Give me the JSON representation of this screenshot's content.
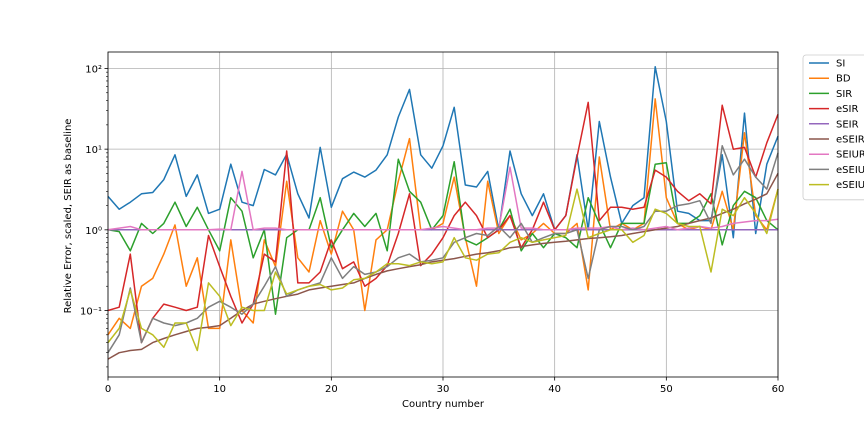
{
  "chart_data": {
    "type": "line",
    "title": "",
    "xlabel": "Country number",
    "ylabel": "Relative Error, scaled, SEIR as baseline",
    "xlim": [
      0,
      60
    ],
    "ylim": [
      0.015,
      160
    ],
    "yscale": "log",
    "grid": true,
    "legend_position": "outside-top-right",
    "x_ticks": [
      "0",
      "10",
      "20",
      "30",
      "40",
      "50",
      "60"
    ],
    "y_ticks": [
      "10⁻¹",
      "10⁰",
      "10¹",
      "10²"
    ],
    "series": [
      {
        "name": "SI",
        "color": "#1f77b4",
        "values": [
          2.6,
          1.8,
          2.2,
          2.8,
          2.9,
          4.2,
          8.5,
          2.6,
          4.8,
          1.6,
          1.8,
          6.5,
          2.2,
          2.0,
          5.6,
          4.8,
          8.6,
          2.8,
          1.4,
          10.5,
          1.9,
          4.3,
          5.2,
          4.5,
          5.5,
          8.5,
          25,
          55,
          8.5,
          5.8,
          11,
          33,
          3.6,
          3.4,
          5.3,
          1.0,
          9.5,
          2.8,
          1.5,
          2.8,
          1.0,
          1.5,
          8.5,
          1.0,
          22,
          4.5,
          1.2,
          2.0,
          2.5,
          105,
          22,
          1.7,
          1.6,
          1.3,
          1.3,
          8.5,
          0.8,
          28,
          0.9,
          6.5,
          14.5
        ]
      },
      {
        "name": "BD",
        "color": "#ff7f0e",
        "values": [
          0.05,
          0.08,
          0.06,
          0.2,
          0.25,
          0.5,
          1.15,
          0.2,
          0.45,
          0.06,
          0.06,
          0.75,
          0.1,
          0.07,
          0.75,
          0.35,
          4.0,
          0.45,
          0.3,
          1.3,
          0.5,
          1.7,
          1.0,
          0.1,
          0.75,
          1.0,
          4.0,
          13.5,
          1.0,
          1.0,
          1.2,
          4.5,
          0.8,
          0.2,
          4.0,
          0.9,
          1.5,
          0.75,
          0.9,
          1.2,
          0.9,
          0.9,
          1.2,
          0.18,
          8.0,
          1.0,
          1.2,
          1.0,
          1.2,
          42,
          2.5,
          1.2,
          1.0,
          1.1,
          1.0,
          3.0,
          1.0,
          16,
          1.5,
          1.0,
          3.2
        ]
      },
      {
        "name": "SIR",
        "color": "#2ca02c",
        "values": [
          1.0,
          0.95,
          0.55,
          1.2,
          0.9,
          1.2,
          2.2,
          1.1,
          1.9,
          1.0,
          0.55,
          2.5,
          1.7,
          0.45,
          1.0,
          0.09,
          0.8,
          1.0,
          1.0,
          2.5,
          0.6,
          1.0,
          1.6,
          1.1,
          1.6,
          0.55,
          7.5,
          3.0,
          2.2,
          1.0,
          1.5,
          7.0,
          0.75,
          0.65,
          0.8,
          1.0,
          1.8,
          0.55,
          0.9,
          0.6,
          0.9,
          0.8,
          0.6,
          2.5,
          1.2,
          0.6,
          1.2,
          1.2,
          1.2,
          6.5,
          6.8,
          1.2,
          1.2,
          1.5,
          2.8,
          0.65,
          2.0,
          3.0,
          2.5,
          1.3,
          1.0
        ]
      },
      {
        "name": "eSIR",
        "color": "#d62728",
        "values": [
          0.1,
          0.11,
          0.5,
          0.04,
          0.08,
          0.12,
          0.11,
          0.1,
          0.11,
          0.85,
          0.35,
          0.15,
          0.07,
          0.12,
          0.5,
          0.4,
          9.5,
          0.22,
          0.22,
          0.3,
          0.75,
          0.33,
          0.4,
          0.2,
          0.25,
          0.36,
          0.9,
          2.8,
          0.36,
          0.5,
          0.8,
          1.5,
          2.2,
          1.5,
          0.8,
          1.0,
          1.5,
          0.6,
          1.0,
          2.2,
          1.0,
          1.5,
          8.0,
          38,
          1.3,
          1.9,
          1.9,
          1.8,
          1.9,
          5.5,
          4.5,
          3.0,
          2.3,
          2.8,
          2.1,
          35,
          10,
          10.5,
          4.5,
          12,
          27
        ]
      },
      {
        "name": "SEIR",
        "color": "#9467bd",
        "values": [
          1.0,
          1.0,
          1.0,
          1.0,
          1.0,
          1.0,
          1.0,
          1.0,
          1.0,
          1.0,
          1.0,
          1.0,
          1.0,
          1.0,
          1.0,
          1.0,
          1.0,
          1.0,
          1.0,
          1.0,
          1.0,
          1.0,
          1.0,
          1.0,
          1.0,
          1.0,
          1.0,
          1.0,
          1.0,
          1.0,
          1.0,
          1.0,
          1.0,
          1.0,
          1.0,
          1.0,
          1.0,
          1.0,
          1.0,
          1.0,
          1.0,
          1.0,
          1.0,
          1.0,
          1.0,
          1.0,
          1.0,
          1.0,
          1.0,
          1.0,
          1.0,
          1.0,
          1.0,
          1.0,
          1.0,
          1.0,
          1.0,
          1.0,
          1.0,
          1.0,
          1.0
        ]
      },
      {
        "name": "eSEIR",
        "color": "#8c564b",
        "values": [
          0.025,
          0.03,
          0.032,
          0.033,
          0.04,
          0.045,
          0.05,
          0.055,
          0.06,
          0.062,
          0.065,
          0.08,
          0.1,
          0.12,
          0.13,
          0.14,
          0.15,
          0.16,
          0.18,
          0.19,
          0.2,
          0.21,
          0.22,
          0.25,
          0.28,
          0.31,
          0.33,
          0.35,
          0.37,
          0.4,
          0.42,
          0.44,
          0.47,
          0.5,
          0.52,
          0.55,
          0.6,
          0.62,
          0.65,
          0.68,
          0.7,
          0.72,
          0.75,
          0.78,
          0.8,
          0.82,
          0.85,
          0.9,
          0.95,
          1.0,
          1.05,
          1.1,
          1.2,
          1.3,
          1.4,
          1.6,
          1.8,
          2.1,
          2.4,
          2.8,
          5.0
        ]
      },
      {
        "name": "SEIUR",
        "color": "#e377c2",
        "values": [
          1.0,
          1.05,
          1.1,
          1.0,
          1.0,
          1.0,
          1.0,
          1.0,
          1.0,
          1.0,
          1.02,
          1.0,
          5.3,
          1.0,
          1.05,
          1.05,
          1.0,
          1.0,
          1.0,
          1.0,
          1.0,
          1.0,
          1.0,
          1.0,
          1.0,
          1.0,
          1.0,
          1.0,
          1.0,
          1.05,
          1.1,
          1.05,
          1.0,
          1.0,
          1.05,
          1.05,
          6.0,
          1.05,
          1.05,
          1.0,
          1.0,
          1.0,
          1.05,
          1.05,
          1.05,
          1.1,
          1.0,
          1.05,
          1.0,
          1.05,
          1.1,
          1.0,
          1.05,
          1.1,
          1.05,
          1.1,
          1.2,
          1.25,
          1.3,
          1.3,
          1.35
        ]
      },
      {
        "name": "eSEIUR",
        "color": "#7f7f7f",
        "values": [
          0.03,
          0.05,
          0.19,
          0.04,
          0.08,
          0.07,
          0.065,
          0.07,
          0.08,
          0.11,
          0.13,
          0.11,
          0.09,
          0.12,
          0.2,
          0.35,
          0.15,
          0.18,
          0.2,
          0.22,
          0.45,
          0.25,
          0.35,
          0.28,
          0.3,
          0.35,
          0.45,
          0.5,
          0.4,
          0.42,
          0.45,
          0.7,
          0.8,
          0.9,
          0.85,
          1.1,
          0.8,
          1.2,
          0.7,
          0.8,
          0.9,
          0.9,
          1.0,
          0.25,
          1.0,
          1.1,
          1.1,
          1.0,
          1.1,
          1.7,
          1.7,
          2.0,
          2.1,
          2.3,
          1.2,
          11,
          4.8,
          7.5,
          4.5,
          3.2,
          9.0
        ]
      },
      {
        "name": "eSEIUR",
        "color": "#bcbd22",
        "values": [
          0.04,
          0.06,
          0.18,
          0.06,
          0.05,
          0.035,
          0.07,
          0.07,
          0.032,
          0.22,
          0.15,
          0.065,
          0.11,
          0.1,
          0.1,
          0.3,
          0.16,
          0.18,
          0.2,
          0.21,
          0.18,
          0.19,
          0.24,
          0.25,
          0.3,
          0.38,
          0.38,
          0.36,
          0.4,
          0.38,
          0.4,
          0.8,
          0.45,
          0.42,
          0.5,
          0.52,
          0.7,
          0.8,
          0.7,
          0.75,
          0.8,
          0.85,
          3.2,
          0.8,
          0.9,
          1.0,
          1.0,
          0.7,
          0.85,
          1.8,
          1.6,
          1.2,
          1.1,
          1.1,
          0.3,
          1.8,
          1.5,
          2.5,
          1.6,
          0.9,
          3.2
        ]
      }
    ]
  }
}
